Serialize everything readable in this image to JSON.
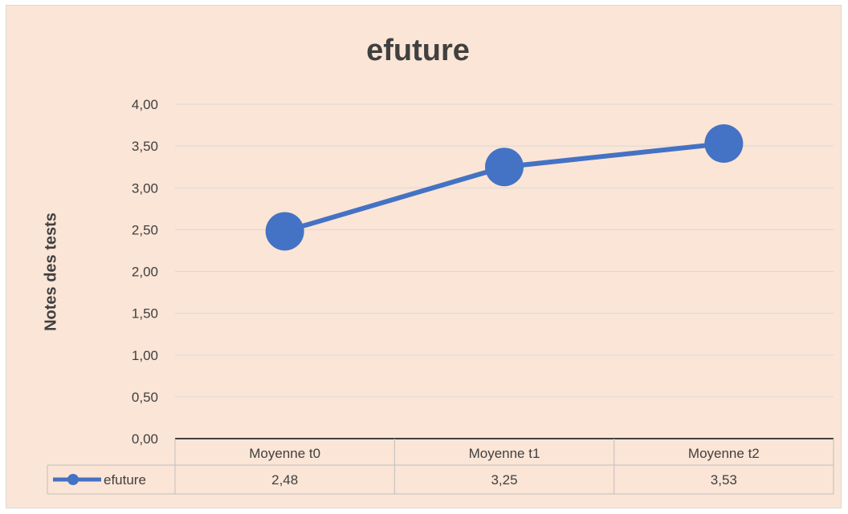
{
  "chart_data": {
    "type": "line",
    "title": "efuture",
    "xlabel": "",
    "ylabel": "Notes des tests",
    "categories": [
      "Moyenne t0",
      "Moyenne t1",
      "Moyenne t2"
    ],
    "series": [
      {
        "name": "efuture",
        "values": [
          2.48,
          3.25,
          3.53
        ],
        "labels": [
          "2,48",
          "3,25",
          "3,53"
        ]
      }
    ],
    "ylim": [
      0,
      4
    ],
    "yticks": [
      "0,00",
      "0,50",
      "1,00",
      "1,50",
      "2,00",
      "2,50",
      "3,00",
      "3,50",
      "4,00"
    ],
    "grid": true,
    "legend": "data-table",
    "colors": {
      "series": "#4472c4",
      "background": "#fbe5d6",
      "grid": "#d9d9d9",
      "text": "#404040"
    }
  }
}
